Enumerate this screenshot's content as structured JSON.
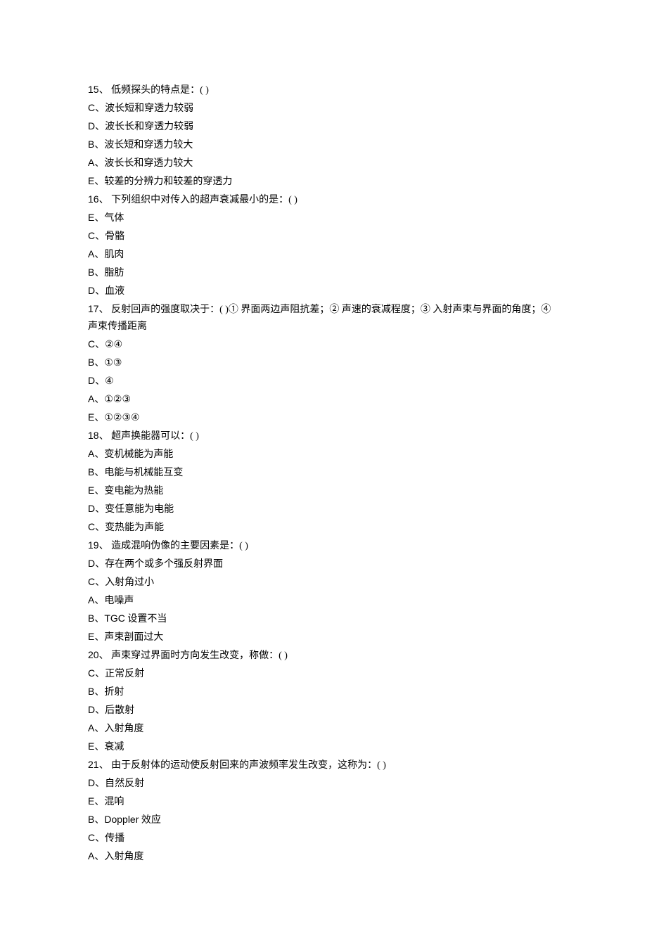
{
  "questions": [
    {
      "number": "15、",
      "text": "低频探头的特点是：( )",
      "options": [
        {
          "letter": "C、",
          "text": "波长短和穿透力较弱"
        },
        {
          "letter": "D、",
          "text": "波长长和穿透力较弱"
        },
        {
          "letter": "B、",
          "text": "波长短和穿透力较大"
        },
        {
          "letter": "A、",
          "text": "波长长和穿透力较大"
        },
        {
          "letter": "E、",
          "text": "较差的分辨力和较差的穿透力"
        }
      ]
    },
    {
      "number": "16、",
      "text": "下列组织中对传入的超声衰减最小的是：( )",
      "options": [
        {
          "letter": "E、",
          "text": "气体"
        },
        {
          "letter": "C、",
          "text": "骨骼"
        },
        {
          "letter": "A、",
          "text": "肌肉"
        },
        {
          "letter": "B、",
          "text": "脂肪"
        },
        {
          "letter": "D、",
          "text": "血液"
        }
      ]
    },
    {
      "number": "17、",
      "text": "反射回声的强度取决于：( )① 界面两边声阻抗差；② 声速的衰减程度；③ 入射声束与界面的角度；④ 声束传播距离",
      "options": [
        {
          "letter": "C、",
          "text": "②④"
        },
        {
          "letter": "B、",
          "text": "①③"
        },
        {
          "letter": "D、",
          "text": "④"
        },
        {
          "letter": "A、",
          "text": "①②③"
        },
        {
          "letter": "E、",
          "text": "①②③④"
        }
      ]
    },
    {
      "number": "18、",
      "text": "超声换能器可以：( )",
      "options": [
        {
          "letter": "A、",
          "text": "变机械能为声能"
        },
        {
          "letter": "B、",
          "text": "电能与机械能互变"
        },
        {
          "letter": "E、",
          "text": "变电能为热能"
        },
        {
          "letter": "D、",
          "text": "变任意能为电能"
        },
        {
          "letter": "C、",
          "text": "变热能为声能"
        }
      ]
    },
    {
      "number": "19、",
      "text": "造成混响伪像的主要因素是：( )",
      "options": [
        {
          "letter": "D、",
          "text": "存在两个或多个强反射界面"
        },
        {
          "letter": "C、",
          "text": "入射角过小"
        },
        {
          "letter": "A、",
          "text": "电噪声"
        },
        {
          "letter": "B、",
          "text": "TGC 设置不当"
        },
        {
          "letter": "E、",
          "text": "声束剖面过大"
        }
      ]
    },
    {
      "number": "20、",
      "text": "声束穿过界面时方向发生改变，称做：( )",
      "options": [
        {
          "letter": "C、",
          "text": "正常反射"
        },
        {
          "letter": "B、",
          "text": "折射"
        },
        {
          "letter": "D、",
          "text": "后散射"
        },
        {
          "letter": "A、",
          "text": "入射角度"
        },
        {
          "letter": "E、",
          "text": "衰减"
        }
      ]
    },
    {
      "number": "21、",
      "text": "由于反射体的运动使反射回来的声波频率发生改变，这称为：( )",
      "options": [
        {
          "letter": "D、",
          "text": "自然反射"
        },
        {
          "letter": "E、",
          "text": "混响"
        },
        {
          "letter": "B、",
          "text": "Doppler 效应"
        },
        {
          "letter": "C、",
          "text": "传播"
        },
        {
          "letter": "A、",
          "text": "入射角度"
        }
      ]
    }
  ]
}
